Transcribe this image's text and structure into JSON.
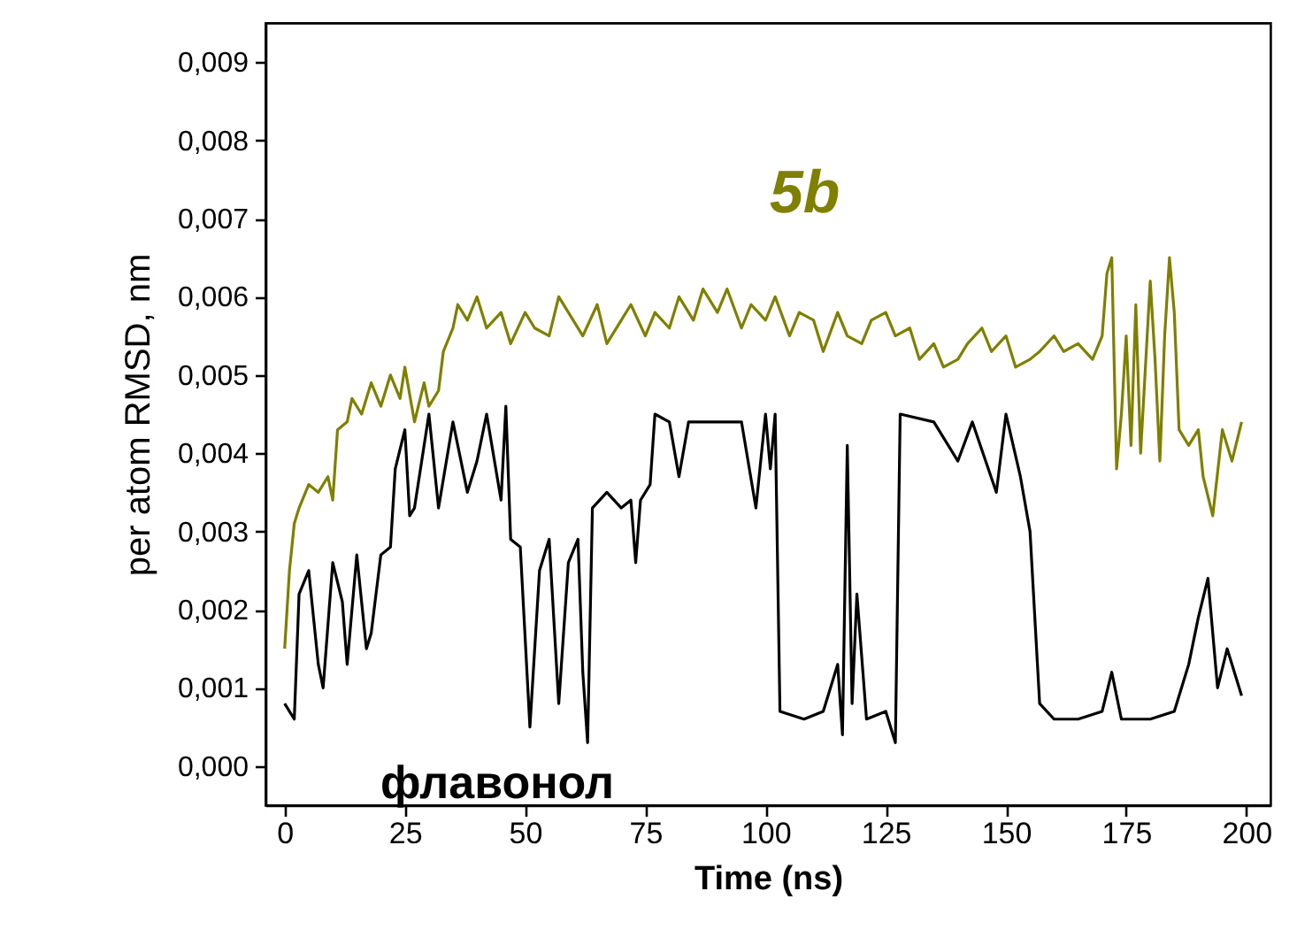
{
  "chart_data": {
    "type": "line",
    "xlabel": "Time (ns)",
    "ylabel": "per atom RMSD, nm",
    "xlim": [
      -4,
      205
    ],
    "xticks": [
      0,
      25,
      50,
      75,
      100,
      125,
      150,
      175,
      200
    ],
    "ylim": [
      -0.0005,
      0.0095
    ],
    "yticks": [
      {
        "value": 0,
        "label": "0,000"
      },
      {
        "value": 0.001,
        "label": "0,001"
      },
      {
        "value": 0.002,
        "label": "0,002"
      },
      {
        "value": 0.003,
        "label": "0,003"
      },
      {
        "value": 0.004,
        "label": "0,004"
      },
      {
        "value": 0.005,
        "label": "0,005"
      },
      {
        "value": 0.006,
        "label": "0,006"
      },
      {
        "value": 0.007,
        "label": "0,007"
      },
      {
        "value": 0.008,
        "label": "0,008"
      },
      {
        "value": 0.009,
        "label": "0,009"
      }
    ],
    "grid": false,
    "series": [
      {
        "name": "5b",
        "color": "#808000",
        "x": [
          0,
          1,
          2,
          3,
          5,
          7,
          9,
          10,
          11,
          13,
          14,
          16,
          18,
          20,
          22,
          24,
          25,
          27,
          29,
          30,
          32,
          33,
          35,
          36,
          38,
          40,
          42,
          45,
          47,
          50,
          52,
          55,
          57,
          60,
          62,
          65,
          67,
          70,
          72,
          75,
          77,
          80,
          82,
          85,
          87,
          90,
          92,
          95,
          97,
          100,
          102,
          105,
          107,
          110,
          112,
          115,
          117,
          120,
          122,
          125,
          127,
          130,
          132,
          135,
          137,
          140,
          142,
          145,
          147,
          150,
          152,
          155,
          157,
          160,
          162,
          165,
          168,
          170,
          171,
          172,
          173,
          174,
          175,
          176,
          177,
          178,
          179,
          180,
          181,
          182,
          183,
          184,
          185,
          186,
          188,
          190,
          191,
          193,
          195,
          197,
          199
        ],
        "values": [
          0.0015,
          0.0025,
          0.0031,
          0.0033,
          0.0036,
          0.0035,
          0.0037,
          0.0034,
          0.0043,
          0.0044,
          0.0047,
          0.0045,
          0.0049,
          0.0046,
          0.005,
          0.0047,
          0.0051,
          0.0044,
          0.0049,
          0.0046,
          0.0048,
          0.0053,
          0.0056,
          0.0059,
          0.0057,
          0.006,
          0.0056,
          0.0058,
          0.0054,
          0.0058,
          0.0056,
          0.0055,
          0.006,
          0.0057,
          0.0055,
          0.0059,
          0.0054,
          0.0057,
          0.0059,
          0.0055,
          0.0058,
          0.0056,
          0.006,
          0.0057,
          0.0061,
          0.0058,
          0.0061,
          0.0056,
          0.0059,
          0.0057,
          0.006,
          0.0055,
          0.0058,
          0.0057,
          0.0053,
          0.0058,
          0.0055,
          0.0054,
          0.0057,
          0.0058,
          0.0055,
          0.0056,
          0.0052,
          0.0054,
          0.0051,
          0.0052,
          0.0054,
          0.0056,
          0.0053,
          0.0055,
          0.0051,
          0.0052,
          0.0053,
          0.0055,
          0.0053,
          0.0054,
          0.0052,
          0.0055,
          0.0063,
          0.0065,
          0.0038,
          0.0045,
          0.0055,
          0.0041,
          0.0059,
          0.004,
          0.0051,
          0.0062,
          0.0052,
          0.0039,
          0.0055,
          0.0065,
          0.0058,
          0.0043,
          0.0041,
          0.0043,
          0.0037,
          0.0032,
          0.0043,
          0.0039,
          0.0044
        ]
      },
      {
        "name": "флавонол",
        "color": "#000000",
        "x": [
          0,
          2,
          3,
          5,
          7,
          8,
          10,
          12,
          13,
          15,
          17,
          18,
          20,
          22,
          23,
          25,
          26,
          27,
          30,
          32,
          35,
          38,
          40,
          42,
          45,
          46,
          47,
          49,
          51,
          53,
          55,
          57,
          59,
          61,
          62,
          63,
          64,
          67,
          70,
          72,
          73,
          74,
          76,
          77,
          80,
          82,
          84,
          90,
          95,
          98,
          100,
          101,
          102,
          103,
          108,
          112,
          115,
          116,
          117,
          118,
          119,
          121,
          125,
          127,
          128,
          135,
          140,
          143,
          148,
          150,
          153,
          155,
          157,
          160,
          165,
          170,
          172,
          174,
          180,
          185,
          188,
          190,
          192,
          194,
          196,
          199
        ],
        "values": [
          0.0008,
          0.0006,
          0.0022,
          0.0025,
          0.0013,
          0.001,
          0.0026,
          0.0021,
          0.0013,
          0.0027,
          0.0015,
          0.0017,
          0.0027,
          0.0028,
          0.0038,
          0.0043,
          0.0032,
          0.0033,
          0.0045,
          0.0033,
          0.0044,
          0.0035,
          0.0039,
          0.0045,
          0.0034,
          0.0046,
          0.0029,
          0.0028,
          0.0005,
          0.0025,
          0.0029,
          0.0008,
          0.0026,
          0.0029,
          0.0012,
          0.0003,
          0.0033,
          0.0035,
          0.0033,
          0.0034,
          0.0026,
          0.0034,
          0.0036,
          0.0045,
          0.0044,
          0.0037,
          0.0044,
          0.0044,
          0.0044,
          0.0033,
          0.0045,
          0.0038,
          0.0045,
          0.0007,
          0.0006,
          0.0007,
          0.0013,
          0.0004,
          0.0041,
          0.0008,
          0.0022,
          0.0006,
          0.0007,
          0.0003,
          0.0045,
          0.0044,
          0.0039,
          0.0044,
          0.0035,
          0.0045,
          0.0037,
          0.003,
          0.0008,
          0.0006,
          0.0006,
          0.0007,
          0.0012,
          0.0006,
          0.0006,
          0.0007,
          0.0013,
          0.0019,
          0.0024,
          0.001,
          0.0015,
          0.0009
        ]
      }
    ]
  }
}
